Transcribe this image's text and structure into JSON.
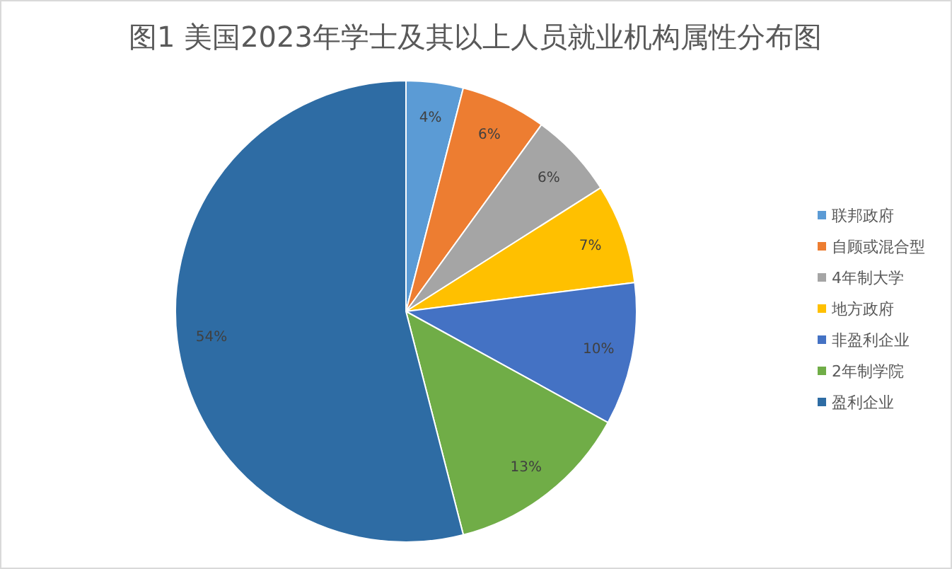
{
  "chart_data": {
    "type": "pie",
    "title": "图1 美国2023年学士及其以上人员就业机构属性分布图",
    "categories": [
      "联邦政府",
      "自顾或混合型",
      "4年制大学",
      "地方政府",
      "非盈利企业",
      "2年制学院",
      "盈利企业"
    ],
    "values": [
      4,
      6,
      6,
      7,
      10,
      13,
      54
    ],
    "colors": [
      "#5b9bd5",
      "#ed7d31",
      "#a5a5a5",
      "#ffc000",
      "#4472c4",
      "#70ad47",
      "#2e6ca4"
    ],
    "value_labels": [
      "4%",
      "6%",
      "6%",
      "7%",
      "10%",
      "13%",
      "54%"
    ],
    "legend": "right"
  }
}
